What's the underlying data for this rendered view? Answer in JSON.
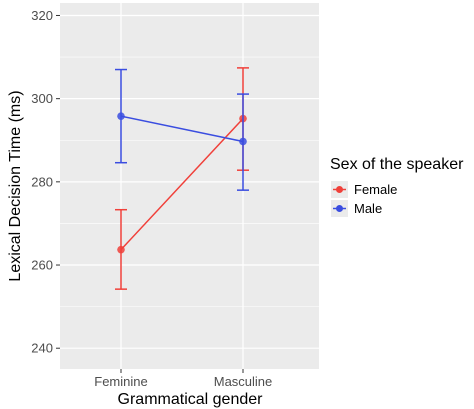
{
  "chart_data": {
    "type": "line",
    "xlabel": "Grammatical gender",
    "ylabel": "Lexical Decision Time (ms)",
    "categories": [
      "Feminine",
      "Masculine"
    ],
    "ylim": [
      235,
      323
    ],
    "yticks": [
      240,
      260,
      280,
      300,
      320
    ],
    "grid": true,
    "legend": {
      "title": "Sex of the speaker",
      "position": "right"
    },
    "series": [
      {
        "name": "Female",
        "color": "#f0403a",
        "values": [
          263.7,
          295.2
        ],
        "err_low": [
          254.2,
          282.8
        ],
        "err_high": [
          273.3,
          307.4
        ]
      },
      {
        "name": "Male",
        "color": "#3a4de0",
        "values": [
          295.8,
          289.7
        ],
        "err_low": [
          284.6,
          278.0
        ],
        "err_high": [
          307.0,
          301.1
        ]
      }
    ]
  }
}
